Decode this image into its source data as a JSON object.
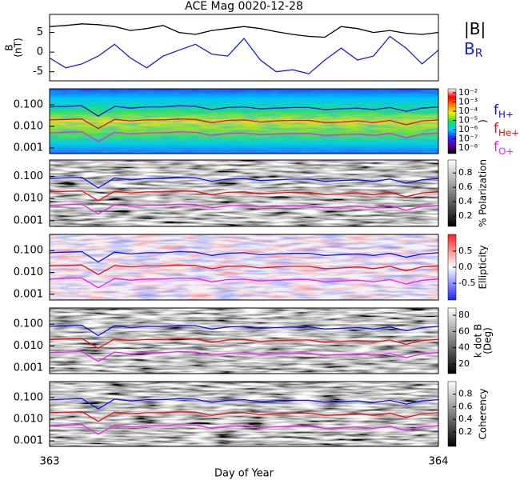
{
  "chart_data": [
    {
      "type": "line",
      "title": "ACE Mag 0020-12-28",
      "ylabel": [
        "B",
        "(nT)"
      ],
      "xlim": [
        363,
        364
      ],
      "ylim": [
        -7.3,
        9.6
      ],
      "yticks": [
        -5,
        0,
        5
      ],
      "x": [
        363,
        363.042,
        363.083,
        363.125,
        363.167,
        363.208,
        363.25,
        363.292,
        363.333,
        363.375,
        363.417,
        363.458,
        363.5,
        363.542,
        363.583,
        363.625,
        363.667,
        363.708,
        363.75,
        363.792,
        363.833,
        363.875,
        363.917,
        363.958,
        364
      ],
      "series": [
        {
          "name": "|B|",
          "color": "#000000",
          "values": [
            6.5,
            6.8,
            7.2,
            7,
            6.5,
            5.5,
            6,
            6.8,
            5,
            4.5,
            5.5,
            6,
            6.5,
            6,
            5.2,
            4.5,
            4,
            3.8,
            6.5,
            6,
            5,
            5.5,
            4.8,
            4.5,
            5
          ]
        },
        {
          "name": "B",
          "sub": "R",
          "color": "#1020f0",
          "values": [
            -1.5,
            -4,
            -3,
            -1,
            2,
            -1.5,
            -4,
            -1,
            0.5,
            2,
            -0.5,
            -1,
            3.5,
            -2,
            -5,
            -4.5,
            -5.5,
            -2,
            1,
            -2,
            -1,
            4,
            1,
            -3,
            0.5
          ]
        }
      ]
    },
    {
      "type": "spectrogram",
      "xlabel": "Day of Year",
      "xlim": [
        363,
        364
      ],
      "xticks": [
        363,
        364
      ],
      "ylim": [
        0.00055,
        0.55
      ],
      "log": true,
      "yticks": [
        {
          "value": 0.001,
          "label": "0.001"
        },
        {
          "value": 0.01,
          "label": "0.010"
        },
        {
          "value": 0.1,
          "label": "0.100"
        }
      ],
      "x": [
        363,
        363.042,
        363.083,
        363.125,
        363.167,
        363.208,
        363.25,
        363.292,
        363.333,
        363.375,
        363.417,
        363.458,
        363.5,
        363.542,
        363.583,
        363.625,
        363.667,
        363.708,
        363.75,
        363.792,
        363.833,
        363.875,
        363.917,
        363.958,
        364
      ],
      "series": [
        {
          "name": "f",
          "sub": "H+",
          "color": "#1010f0",
          "values": [
            0.08,
            0.085,
            0.09,
            0.03,
            0.085,
            0.07,
            0.08,
            0.08,
            0.09,
            0.085,
            0.06,
            0.075,
            0.08,
            0.065,
            0.07,
            0.075,
            0.075,
            0.06,
            0.065,
            0.07,
            0.06,
            0.075,
            0.05,
            0.07,
            0.08
          ]
        },
        {
          "name": "f",
          "sub": "He+",
          "color": "#f01010",
          "values": [
            0.02,
            0.021,
            0.022,
            0.008,
            0.021,
            0.018,
            0.02,
            0.02,
            0.022,
            0.021,
            0.015,
            0.019,
            0.02,
            0.016,
            0.018,
            0.019,
            0.019,
            0.015,
            0.016,
            0.018,
            0.015,
            0.019,
            0.012,
            0.018,
            0.02
          ]
        },
        {
          "name": "f",
          "sub": "O+",
          "color": "#f020f0",
          "values": [
            0.005,
            0.0053,
            0.0056,
            0.002,
            0.0053,
            0.0044,
            0.005,
            0.005,
            0.0056,
            0.0053,
            0.0038,
            0.0047,
            0.005,
            0.0041,
            0.0044,
            0.0047,
            0.0047,
            0.0038,
            0.0041,
            0.0044,
            0.0038,
            0.0047,
            0.003,
            0.0044,
            0.005
          ]
        }
      ],
      "panels": [
        {
          "colormap": [
            "#000000",
            "#6000a0",
            "#2030ff",
            "#00d0ff",
            "#20e040",
            "#f0f000",
            "#ff8000",
            "#ff0000",
            "#ffffff"
          ],
          "clim": [
            -8.6,
            -1.57
          ],
          "clabel": [
            ")"
          ],
          "cticks": [
            {
              "value": -2,
              "label": "10⁻²"
            },
            {
              "value": -3,
              "label": "10⁻³"
            },
            {
              "value": -4,
              "label": "10⁻⁴"
            },
            {
              "value": -5,
              "label": "10⁻⁵"
            },
            {
              "value": -6,
              "label": "10⁻⁶"
            },
            {
              "value": -7,
              "label": "10⁻⁷"
            },
            {
              "value": -8,
              "label": "10⁻⁸"
            }
          ]
        },
        {
          "colormap": [
            "#000000",
            "#ffffff"
          ],
          "clim": [
            0.056,
            0.98
          ],
          "clabel": [
            "% Polarization"
          ],
          "cticks": [
            0.2,
            0.4,
            0.6,
            0.8
          ]
        },
        {
          "colormap": [
            "#2020ff",
            "#ffffff",
            "#ff2020"
          ],
          "clim": [
            -1.02,
            1.02
          ],
          "clabel": [
            "Ellipticity"
          ],
          "cticks": [
            -0.5,
            {
              "value": 0,
              "label": "0.0"
            },
            0.5
          ]
        },
        {
          "colormap": [
            "#000000",
            "#ffffff"
          ],
          "clim": [
            8,
            89
          ],
          "clabel": [
            "k dot B",
            "(Deg)"
          ],
          "cticks": [
            20,
            40,
            60,
            80
          ]
        },
        {
          "colormap": [
            "#000000",
            "#ffffff"
          ],
          "clim": [
            -0.03,
            1.0
          ],
          "clabel": [
            "Coherency"
          ],
          "cticks": [
            0.2,
            0.4,
            0.6,
            0.8
          ]
        }
      ]
    }
  ]
}
